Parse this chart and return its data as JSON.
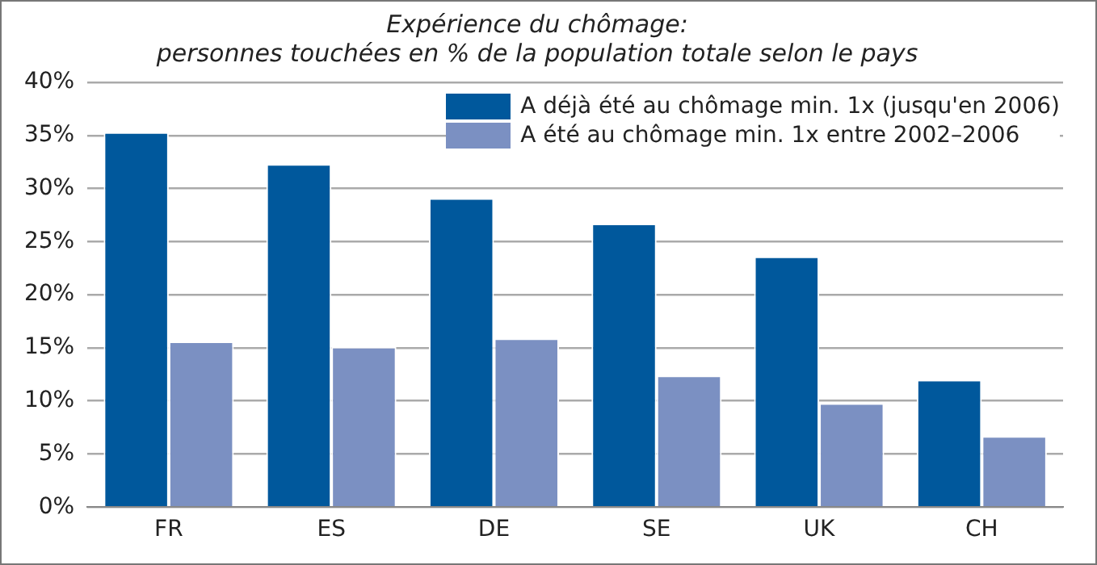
{
  "chart_data": {
    "type": "bar",
    "title": "Expérience du chômage:\npersonnes touchées en % de la population totale selon le pays",
    "categories": [
      "FR",
      "ES",
      "DE",
      "SE",
      "UK",
      "CH"
    ],
    "series": [
      {
        "name": "A déjà été au chômage min. 1x (jusqu'en 2006)",
        "color": "#00589c",
        "values": [
          35.3,
          32.3,
          29.1,
          26.7,
          23.6,
          12.0
        ]
      },
      {
        "name": "A été au chômage min. 1x entre 2002–2006",
        "color": "#7b90c2",
        "values": [
          15.6,
          15.1,
          15.9,
          12.4,
          9.8,
          6.7
        ]
      }
    ],
    "ylim": [
      0,
      40
    ],
    "yticks": [
      {
        "value": 0,
        "label": "0%"
      },
      {
        "value": 5,
        "label": "5%"
      },
      {
        "value": 10,
        "label": "10%"
      },
      {
        "value": 15,
        "label": "15%"
      },
      {
        "value": 20,
        "label": "20%"
      },
      {
        "value": 25,
        "label": "25%"
      },
      {
        "value": 30,
        "label": "30%"
      },
      {
        "value": 35,
        "label": "35%"
      },
      {
        "value": 40,
        "label": "40%"
      }
    ],
    "grid": "y",
    "legend": "top right"
  }
}
